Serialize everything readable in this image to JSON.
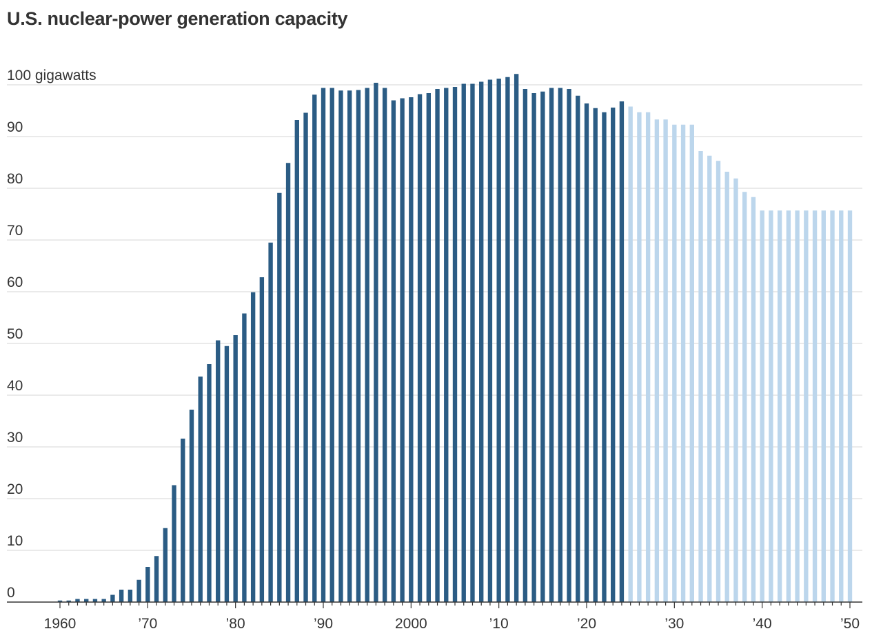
{
  "chart_data": {
    "type": "bar",
    "title": "U.S. nuclear-power generation capacity",
    "ylabel": "",
    "xlabel": "",
    "y_unit_label": "100 gigawatts",
    "ylim": [
      0,
      100
    ],
    "yticks": [
      0,
      10,
      20,
      30,
      40,
      50,
      60,
      70,
      80,
      90,
      100
    ],
    "ytick_labels": [
      "0",
      "10",
      "20",
      "30",
      "40",
      "50",
      "60",
      "70",
      "80",
      "90",
      "100 gigawatts"
    ],
    "xlim": [
      1960,
      2050
    ],
    "xticks": [
      1960,
      1970,
      1980,
      1990,
      2000,
      2010,
      2020,
      2030,
      2040,
      2050
    ],
    "xtick_labels": [
      "1960",
      "’70",
      "’80",
      "’90",
      "2000",
      "’10",
      "’20",
      "’30",
      "’40",
      "’50"
    ],
    "grid": true,
    "colors": {
      "historical": "#2b5c84",
      "projected": "#bcd6ec",
      "grid": "#dddddd",
      "axis": "#333333"
    },
    "series": [
      {
        "kind": "historical",
        "x": [
          1960,
          1961,
          1962,
          1963,
          1964,
          1965,
          1966,
          1967,
          1968,
          1969,
          1970,
          1971,
          1972,
          1973,
          1974,
          1975,
          1976,
          1977,
          1978,
          1979,
          1980,
          1981,
          1982,
          1983,
          1984,
          1985,
          1986,
          1987,
          1988,
          1989,
          1990,
          1991,
          1992,
          1993,
          1994,
          1995,
          1996,
          1997,
          1998,
          1999,
          2000,
          2001,
          2002,
          2003,
          2004,
          2005,
          2006,
          2007,
          2008,
          2009,
          2010,
          2011,
          2012,
          2013,
          2014,
          2015,
          2016,
          2017,
          2018,
          2019,
          2020,
          2021,
          2022,
          2023,
          2024
        ],
        "values": [
          0.3,
          0.3,
          0.6,
          0.6,
          0.6,
          0.6,
          1.4,
          2.4,
          2.4,
          4.3,
          6.8,
          8.9,
          14.3,
          22.6,
          31.6,
          37.2,
          43.6,
          46.0,
          50.6,
          49.5,
          51.6,
          55.8,
          59.9,
          62.8,
          69.5,
          79.1,
          84.9,
          93.2,
          94.6,
          98.1,
          99.4,
          99.4,
          98.9,
          98.9,
          99.0,
          99.4,
          100.4,
          99.4,
          97.0,
          97.4,
          97.6,
          98.2,
          98.4,
          99.2,
          99.4,
          99.6,
          100.2,
          100.2,
          100.6,
          101.0,
          101.2,
          101.5,
          102.1,
          99.2,
          98.4,
          98.7,
          99.4,
          99.4,
          99.2,
          97.9,
          96.4,
          95.5,
          94.7,
          95.6,
          96.8
        ]
      },
      {
        "kind": "projected",
        "x": [
          2025,
          2026,
          2027,
          2028,
          2029,
          2030,
          2031,
          2032,
          2033,
          2034,
          2035,
          2036,
          2037,
          2038,
          2039,
          2040,
          2041,
          2042,
          2043,
          2044,
          2045,
          2046,
          2047,
          2048,
          2049,
          2050
        ],
        "values": [
          95.8,
          94.7,
          94.7,
          93.3,
          93.3,
          92.3,
          92.3,
          92.3,
          87.2,
          86.3,
          85.3,
          83.2,
          81.9,
          79.3,
          78.3,
          75.7,
          75.7,
          75.7,
          75.7,
          75.7,
          75.7,
          75.7,
          75.7,
          75.7,
          75.7,
          75.7
        ]
      }
    ]
  }
}
